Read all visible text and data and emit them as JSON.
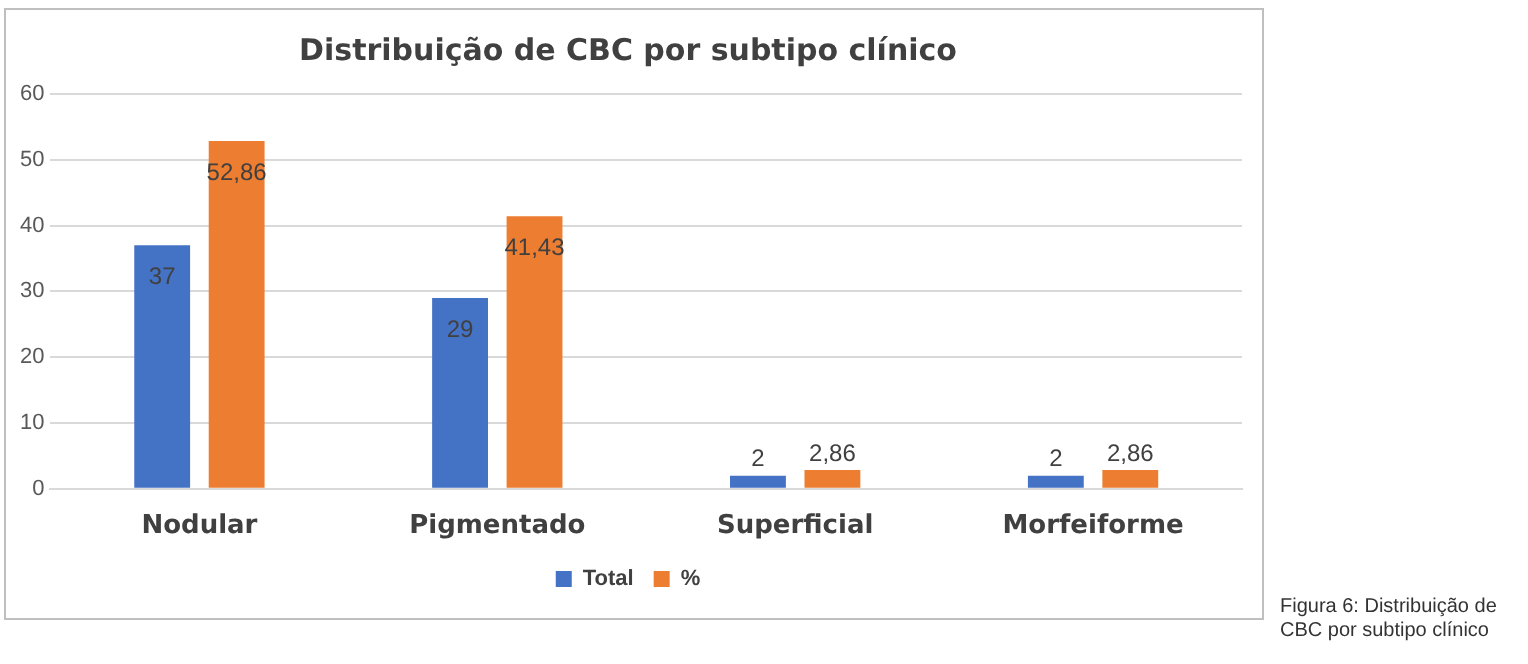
{
  "chart_data": {
    "type": "bar",
    "title": "Distribuição de CBC por subtipo clínico",
    "categories": [
      "Nodular",
      "Pigmentado",
      "Superficial",
      "Morfeiforme"
    ],
    "series": [
      {
        "name": "Total",
        "color": "#4472c4",
        "values": [
          37,
          29,
          2,
          2
        ],
        "value_labels": [
          "37",
          "29",
          "2",
          "2"
        ]
      },
      {
        "name": "%",
        "color": "#ed7d31",
        "values": [
          52.86,
          41.43,
          2.86,
          2.86
        ],
        "value_labels": [
          "52,86",
          "41,43",
          "2,86",
          "2,86"
        ]
      }
    ],
    "ylim": [
      0,
      60
    ],
    "yticks": [
      0,
      10,
      20,
      30,
      40,
      50,
      60
    ],
    "grid": "y",
    "legend": "bottom",
    "annotations": [
      "Figura 6: Distribuição de CBC por subtipo clínico"
    ]
  }
}
